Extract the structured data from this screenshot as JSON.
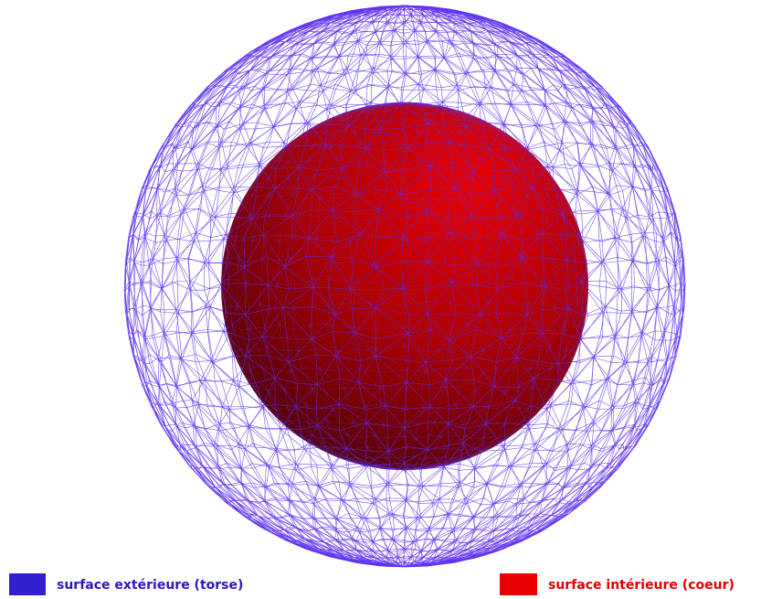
{
  "legend": [
    {
      "label": "surface extérieure (torse)"
    },
    {
      "label": "surface intérieure (coeur)"
    }
  ]
}
